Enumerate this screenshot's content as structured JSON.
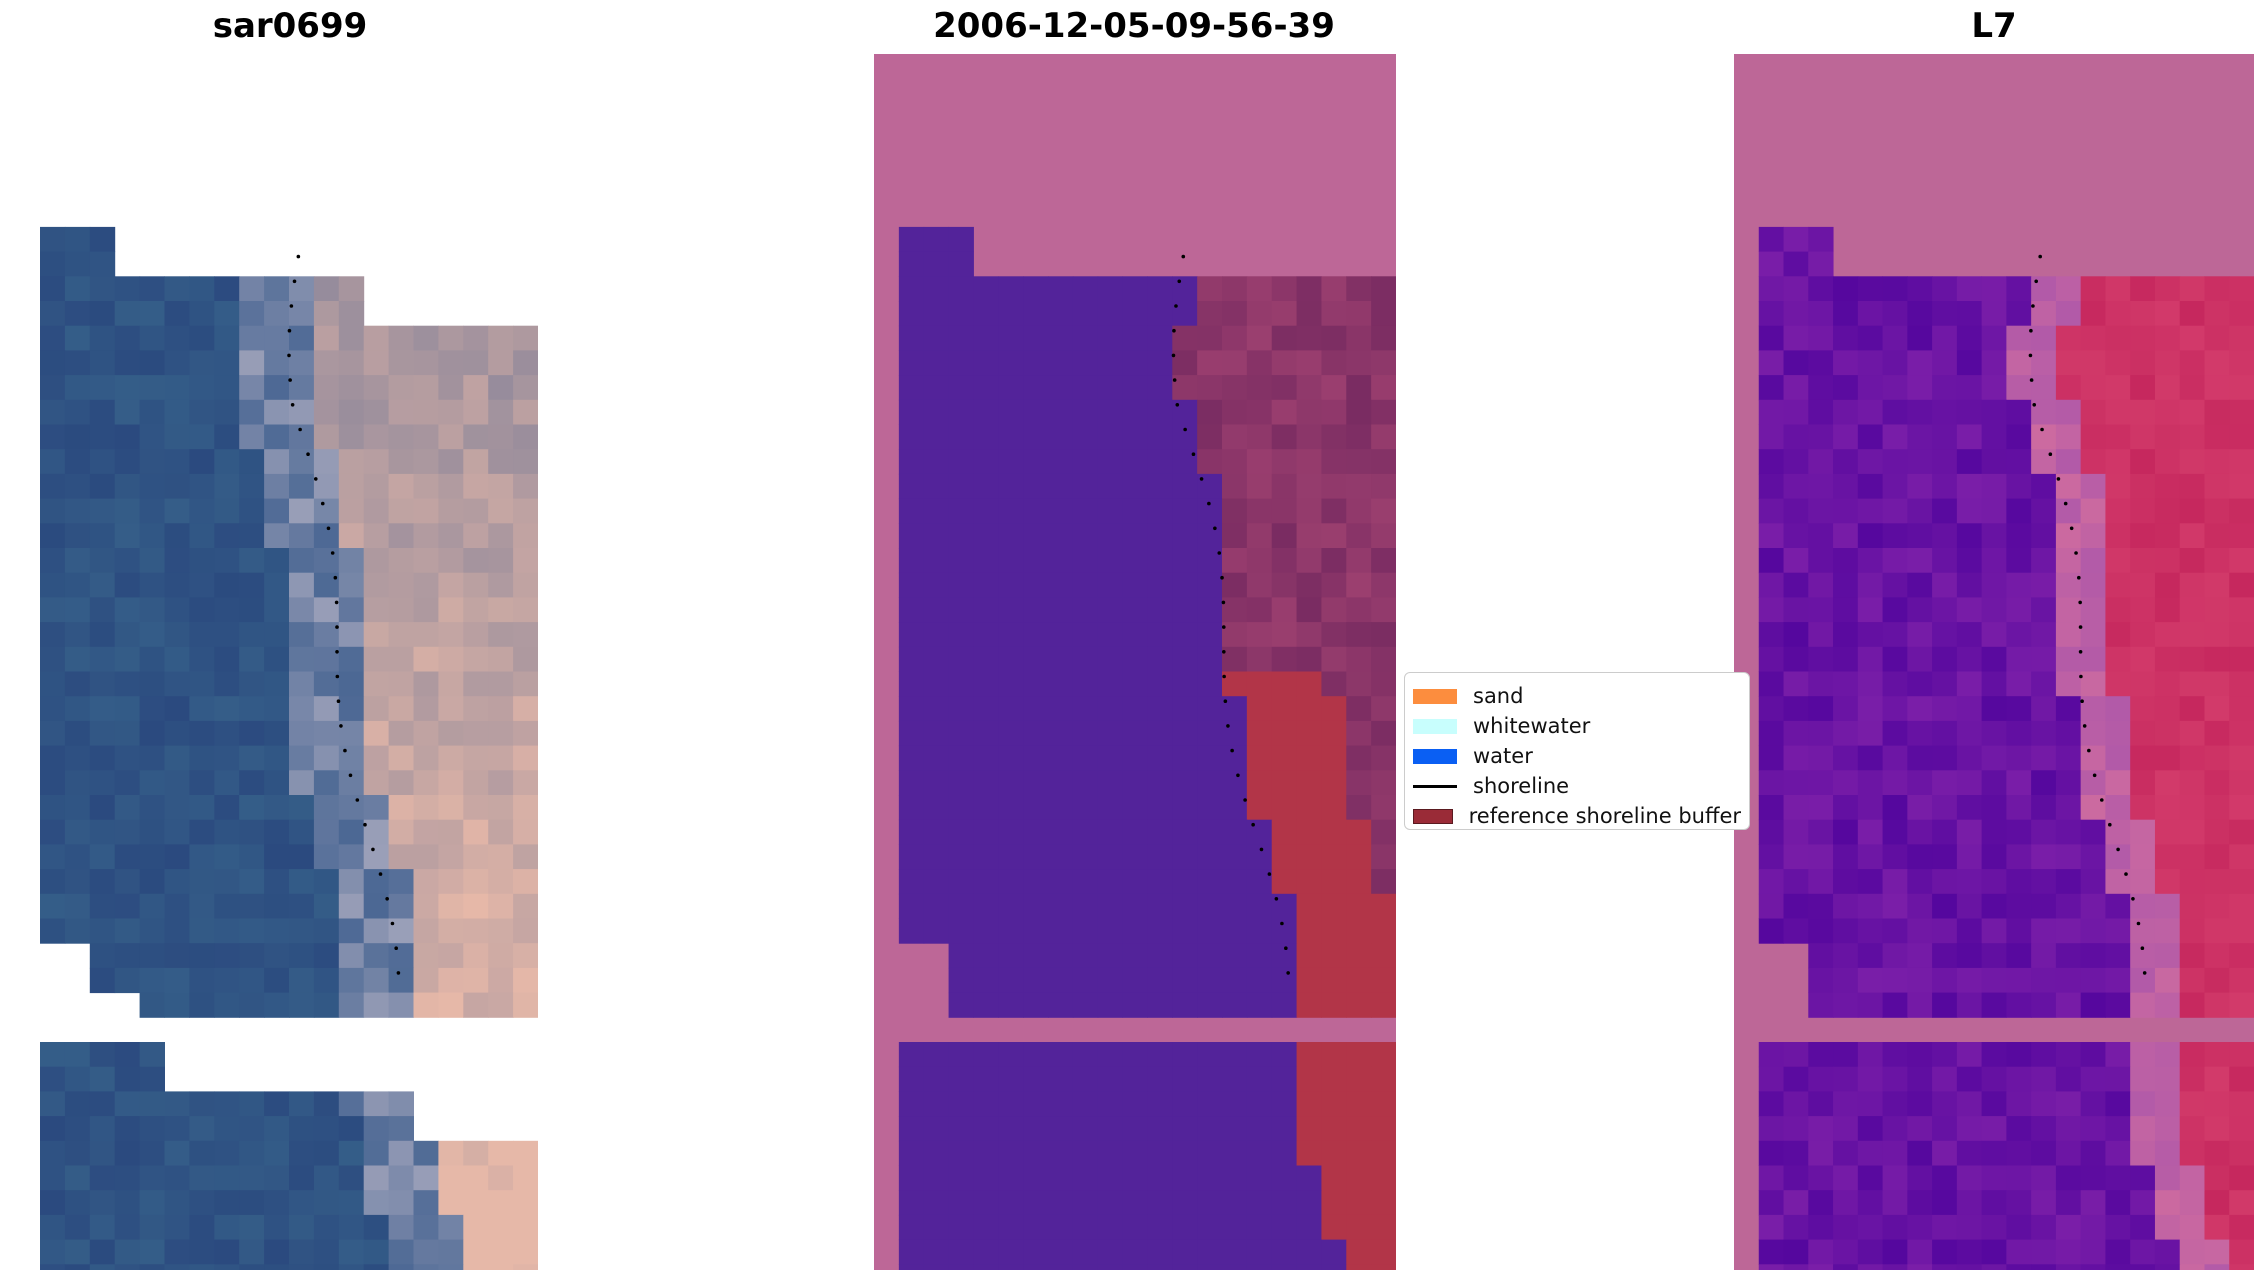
{
  "panels": [
    {
      "title": "sar0699",
      "kind": "rgb"
    },
    {
      "title": "2006-12-05-09-56-39",
      "kind": "classified"
    },
    {
      "title": "L7",
      "kind": "index"
    }
  ],
  "legend": {
    "items": [
      {
        "label": "sand",
        "color": "#fc8d3e",
        "type": "patch"
      },
      {
        "label": "whitewater",
        "color": "#c8fefd",
        "type": "patch"
      },
      {
        "label": "water",
        "color": "#0a5ff3",
        "type": "patch"
      },
      {
        "label": "shoreline",
        "color": "#000000",
        "type": "line"
      },
      {
        "label": "reference shoreline buffer",
        "color": "#9a2b37",
        "type": "patch"
      }
    ]
  },
  "colors": {
    "land_mask": "#bd6797",
    "classified_water": "#53239a",
    "classified_buffer": "#b23548",
    "rgb_water": "#2d4f82",
    "rgb_sand": "#e8b7a6"
  }
}
